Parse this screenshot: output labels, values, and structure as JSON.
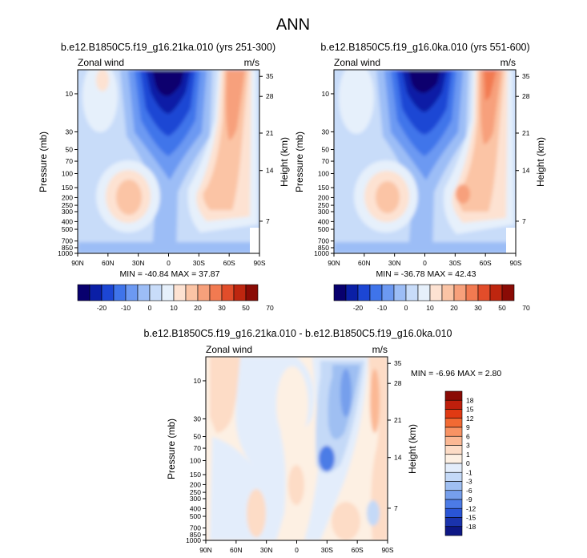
{
  "page_title": "ANN",
  "chart_data": [
    {
      "type": "heatmap",
      "title": "b.e12.B1850C5.f19_g16.21ka.010 (yrs 251-300)",
      "left_label": "Zonal wind",
      "right_label": "m/s",
      "ylabel": "Pressure (mb)",
      "ylabel_right": "Height (km)",
      "x_ticks": [
        "90N",
        "60N",
        "30N",
        "0",
        "30S",
        "60S",
        "90S"
      ],
      "y_ticks": [
        "10",
        "30",
        "50",
        "70",
        "100",
        "150",
        "200",
        "250",
        "300",
        "400",
        "500",
        "700",
        "850",
        "1000"
      ],
      "height_ticks": [
        "35",
        "28",
        "21",
        "14",
        "7"
      ],
      "stats": "MIN = -40.84  MAX = 37.87",
      "colorbar_labels": [
        "-20",
        "-10",
        "0",
        "10",
        "20",
        "30",
        "50",
        "70"
      ],
      "features": [
        {
          "lat": 30,
          "p": 200,
          "value": 20
        },
        {
          "lat": -35,
          "p": 10,
          "value": 30
        },
        {
          "lat": -45,
          "p": 200,
          "value": 20
        },
        {
          "lat": 20,
          "p": 5,
          "value": -40
        }
      ]
    },
    {
      "type": "heatmap",
      "title": "b.e12.B1850C5.f19_g16.0ka.010 (yrs 551-600)",
      "left_label": "Zonal wind",
      "right_label": "m/s",
      "ylabel": "Pressure (mb)",
      "ylabel_right": "Height (km)",
      "x_ticks": [
        "90N",
        "60N",
        "30N",
        "0",
        "30S",
        "60S",
        "90S"
      ],
      "y_ticks": [
        "10",
        "30",
        "50",
        "70",
        "100",
        "150",
        "200",
        "250",
        "300",
        "400",
        "500",
        "700",
        "850",
        "1000"
      ],
      "height_ticks": [
        "35",
        "28",
        "21",
        "14",
        "7"
      ],
      "stats": "MIN = -36.78  MAX =  42.43",
      "colorbar_labels": [
        "-20",
        "-10",
        "0",
        "10",
        "20",
        "30",
        "50",
        "70"
      ],
      "features": [
        {
          "lat": 30,
          "p": 200,
          "value": 20
        },
        {
          "lat": -40,
          "p": 10,
          "value": 30
        },
        {
          "lat": -45,
          "p": 200,
          "value": 30
        },
        {
          "lat": 20,
          "p": 5,
          "value": -35
        }
      ]
    },
    {
      "type": "heatmap",
      "title": "b.e12.B1850C5.f19_g16.21ka.010 - b.e12.B1850C5.f19_g16.0ka.010",
      "left_label": "Zonal wind",
      "right_label": "m/s",
      "ylabel": "Pressure (mb)",
      "ylabel_right": "Height (km)",
      "x_ticks": [
        "90N",
        "60N",
        "30N",
        "0",
        "30S",
        "60S",
        "90S"
      ],
      "y_ticks": [
        "10",
        "30",
        "50",
        "70",
        "100",
        "150",
        "200",
        "250",
        "300",
        "400",
        "500",
        "700",
        "850",
        "1000"
      ],
      "height_ticks": [
        "35",
        "28",
        "21",
        "14",
        "7"
      ],
      "stats": "MIN = -6.96  MAX =  2.80",
      "colorbar_labels": [
        "18",
        "15",
        "12",
        "9",
        "6",
        "3",
        "1",
        "0",
        "-1",
        "-3",
        "-6",
        "-9",
        "-12",
        "-15",
        "-18"
      ]
    }
  ],
  "colors": {
    "zonal_scale": [
      "#08006e",
      "#0a1fa6",
      "#1c46d4",
      "#3f74ea",
      "#6c99f2",
      "#9cbdf6",
      "#c8dcf9",
      "#e6f0fb",
      "#fde2d2",
      "#fbc4a5",
      "#f7a07b",
      "#f27a51",
      "#e24d2a",
      "#be260f",
      "#8a0b05"
    ],
    "diff_scale": [
      "#8a0b05",
      "#bf1f0c",
      "#e03a13",
      "#f26a33",
      "#f89364",
      "#fbb894",
      "#fddcc6",
      "#fdf0e3",
      "#e3edfb",
      "#c4d9f7",
      "#9fbff2",
      "#769fec",
      "#4c7be6",
      "#2a55d6",
      "#1a33ad",
      "#0d1785"
    ],
    "diff_background": "#fdf0e3"
  }
}
